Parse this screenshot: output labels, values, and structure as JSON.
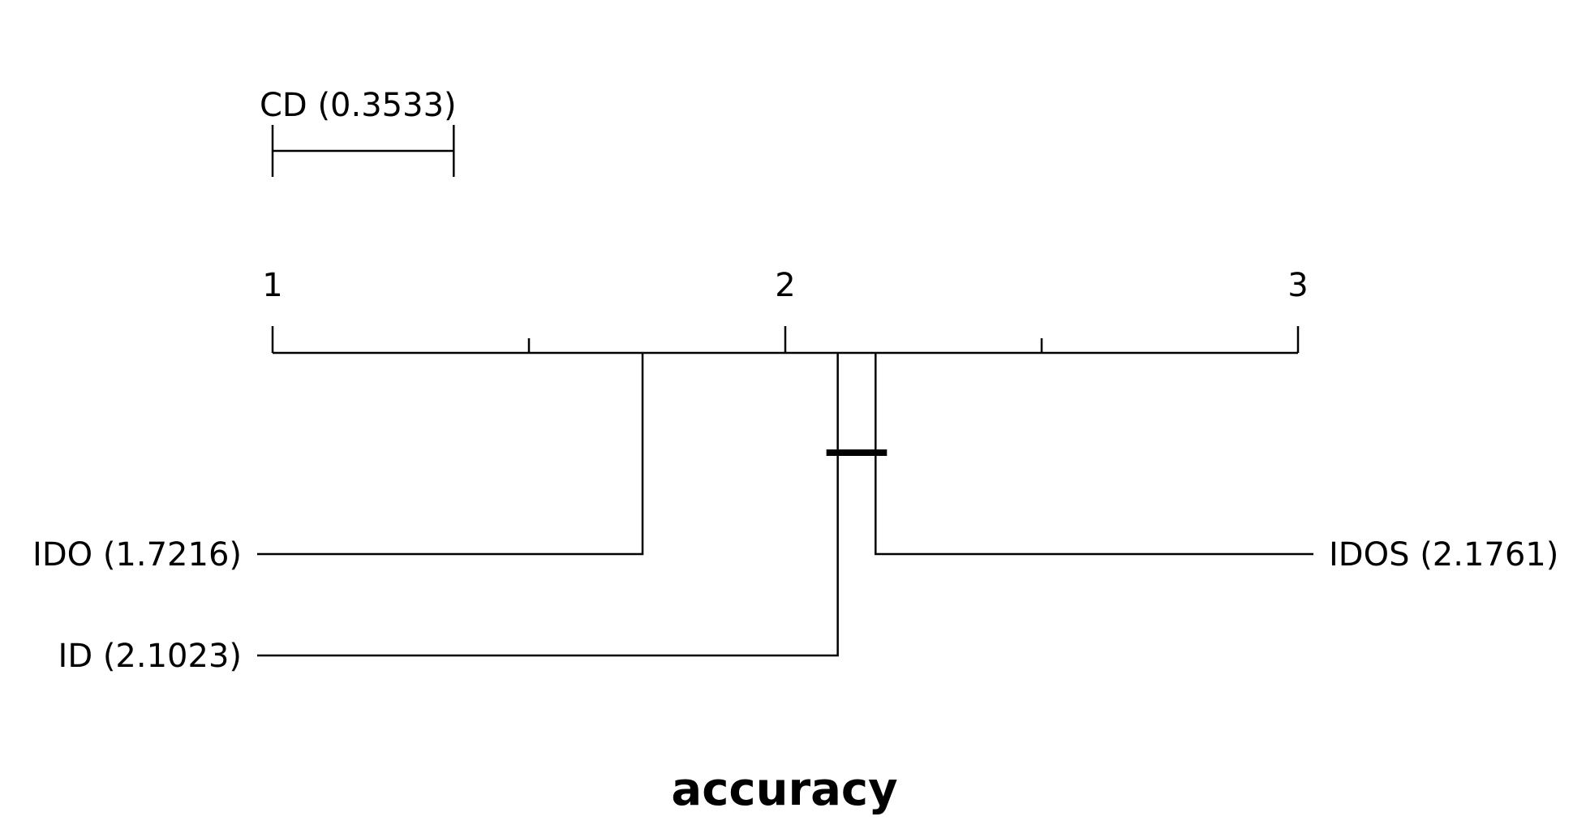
{
  "chart_data": {
    "type": "critical-difference-diagram",
    "title": "accuracy",
    "title_color": "#0000ff",
    "axis": {
      "range": [
        1,
        3
      ],
      "major_ticks": [
        1,
        2,
        3
      ],
      "minor_ticks": [
        1.5,
        2.5
      ],
      "tick_labels": [
        "1",
        "2",
        "3"
      ]
    },
    "critical_difference": {
      "value": 0.3533,
      "label": "CD (0.3533)"
    },
    "methods": [
      {
        "name": "IDO",
        "rank": 1.7216,
        "label": "IDO (1.7216)",
        "side": "left"
      },
      {
        "name": "ID",
        "rank": 2.1023,
        "label": "ID (2.1023)",
        "side": "left"
      },
      {
        "name": "IDOS",
        "rank": 2.1761,
        "label": "IDOS (2.1761)",
        "side": "right"
      }
    ],
    "cliques": [
      {
        "from": 2.1023,
        "to": 2.1761
      }
    ]
  }
}
